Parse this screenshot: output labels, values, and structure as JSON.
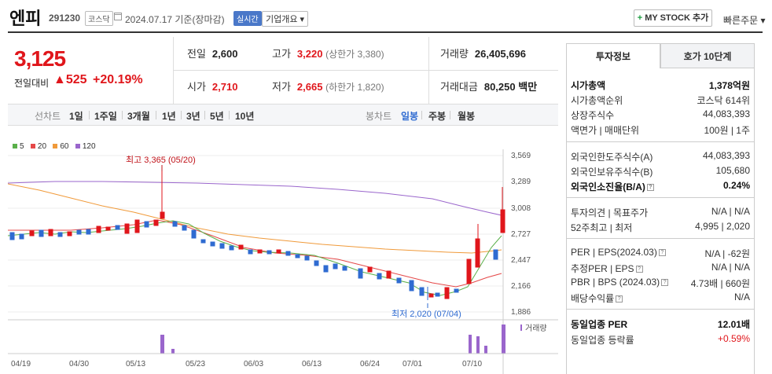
{
  "header": {
    "name": "엔피",
    "code": "291230",
    "market": "코스닥",
    "date": "2024.07.17 기준(장마감)",
    "realtime": "실시간",
    "overview": "기업개요 ▾",
    "mystock": "MY STOCK 추가",
    "quick_order": "빠른주문 ▾"
  },
  "price": {
    "current": "3,125",
    "prev_label": "전일대비",
    "change": "▲525",
    "percent": "+20.19%"
  },
  "stats": {
    "prev_label": "전일",
    "prev": "2,600",
    "high_label": "고가",
    "high": "3,220",
    "upper_limit": "(상한가 3,380)",
    "volume_label": "거래량",
    "volume": "26,405,696",
    "open_label": "시가",
    "open": "2,710",
    "low_label": "저가",
    "low": "2,665",
    "lower_limit": "(하한가 1,820)",
    "amount_label": "거래대금",
    "amount": "80,250",
    "amount_unit": "백만"
  },
  "periods": {
    "line_label": "선차트",
    "line": [
      "1일",
      "1주일",
      "3개월",
      "1년",
      "3년",
      "5년",
      "10년"
    ],
    "candle_label": "봉차트",
    "candle": [
      "일봉",
      "주봉",
      "월봉"
    ],
    "active": "일봉"
  },
  "legend": [
    {
      "label": "5",
      "color": "#5ab04a"
    },
    {
      "label": "20",
      "color": "#e54848"
    },
    {
      "label": "60",
      "color": "#f09a3a"
    },
    {
      "label": "120",
      "color": "#9a66cc"
    }
  ],
  "chart_labels": {
    "high": "최고 3,365 (05/20)",
    "low": "최저 2,020 (07/04)",
    "volume": "거래량",
    "y_ticks": [
      "3,569",
      "3,289",
      "3,008",
      "2,727",
      "2,447",
      "2,166",
      "1,886"
    ],
    "x_ticks": [
      "04/19",
      "04/30",
      "05/13",
      "05/23",
      "06/03",
      "06/13",
      "06/24",
      "07/01",
      "07/10"
    ]
  },
  "panel": {
    "tab_info": "투자정보",
    "tab_quote": "호가 10단계",
    "rows": [
      {
        "l": "시가총액",
        "r": "1,378억원",
        "bold": true
      },
      {
        "l": "시가총액순위",
        "r": "코스닥 614위"
      },
      {
        "l": "상장주식수",
        "r": "44,083,393"
      },
      {
        "l": "액면가 | 매매단위",
        "r": "100원 | 1주"
      },
      {
        "l": "외국인한도주식수(A)",
        "r": "44,083,393"
      },
      {
        "l": "외국인보유주식수(B)",
        "r": "105,680"
      },
      {
        "l": "외국인소진율(B/A)",
        "r": "0.24%",
        "bold": true
      },
      {
        "l": "투자의견 | 목표주가",
        "r": "N/A | N/A"
      },
      {
        "l": "52주최고 | 최저",
        "r": "4,995 | 2,020"
      },
      {
        "l": "PER | EPS(2024.03)",
        "r": "N/A | -62원"
      },
      {
        "l": "추정PER | EPS",
        "r": "N/A | N/A"
      },
      {
        "l": "PBR | BPS (2024.03)",
        "r": "4.73배 | 660원"
      },
      {
        "l": "배당수익률",
        "r": "N/A"
      },
      {
        "l": "동일업종 PER",
        "r": "12.01배",
        "bold": true
      },
      {
        "l": "동일업종 등락률",
        "r": "+0.59%",
        "red": true
      }
    ]
  }
}
